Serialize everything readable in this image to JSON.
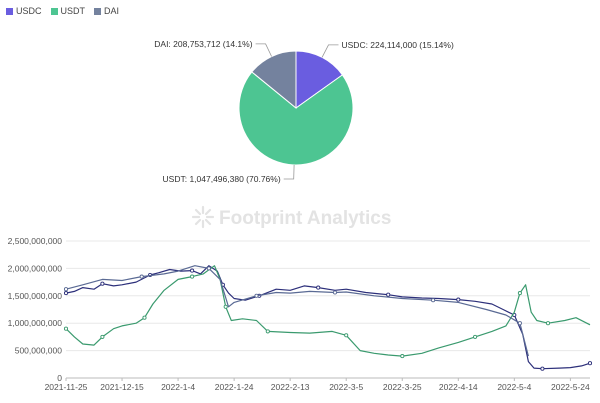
{
  "watermark": "Footprint Analytics",
  "colors": {
    "USDC": "#6a5de0",
    "USDT": "#4dc592",
    "DAI": "#74829e",
    "line_usdc": "#2c2f7a",
    "line_usdt": "#3a9a6e",
    "line_dai": "#5a6a94"
  },
  "chart_data": [
    {
      "type": "pie",
      "legend": [
        "USDC",
        "USDT",
        "DAI"
      ],
      "legend_placement": "top-left",
      "slices": [
        {
          "name": "USDC",
          "value": 224114000,
          "label": "USDC: 224,114,000 (15.14%)"
        },
        {
          "name": "USDT",
          "value": 1047496380,
          "label": "USDT: 1,047,496,380 (70.76%)"
        },
        {
          "name": "DAI",
          "value": 208753712,
          "label": "DAI: 208,753,712 (14.1%)"
        }
      ]
    },
    {
      "type": "line",
      "ylim": [
        0,
        2500000000
      ],
      "y_ticks": [
        "0",
        "500,000,000",
        "1,000,000,000",
        "1,500,000,000",
        "2,000,000,000",
        "2,500,000,000"
      ],
      "x_range": [
        "2021-11-25",
        "2022-05-31"
      ],
      "x_ticks": [
        "2021-11-25",
        "2021-12-15",
        "2022-1-4",
        "2022-1-24",
        "2022-2-13",
        "2022-3-5",
        "2022-3-25",
        "2022-4-14",
        "2022-5-4",
        "2022-5-24"
      ],
      "grid": "horizontal",
      "series": [
        {
          "name": "USDC",
          "points": [
            [
              "2021-11-25",
              1550000000
            ],
            [
              "2021-11-28",
              1580000000
            ],
            [
              "2021-12-01",
              1650000000
            ],
            [
              "2021-12-05",
              1620000000
            ],
            [
              "2021-12-08",
              1720000000
            ],
            [
              "2021-12-12",
              1680000000
            ],
            [
              "2021-12-15",
              1700000000
            ],
            [
              "2021-12-20",
              1750000000
            ],
            [
              "2021-12-25",
              1880000000
            ],
            [
              "2021-12-28",
              1920000000
            ],
            [
              "2022-01-01",
              1980000000
            ],
            [
              "2022-01-05",
              1950000000
            ],
            [
              "2022-01-09",
              1960000000
            ],
            [
              "2022-01-12",
              1900000000
            ],
            [
              "2022-01-15",
              2050000000
            ],
            [
              "2022-01-18",
              1950000000
            ],
            [
              "2022-01-20",
              1700000000
            ],
            [
              "2022-01-22",
              1550000000
            ],
            [
              "2022-01-24",
              1450000000
            ],
            [
              "2022-01-28",
              1420000000
            ],
            [
              "2022-02-02",
              1500000000
            ],
            [
              "2022-02-08",
              1620000000
            ],
            [
              "2022-02-13",
              1600000000
            ],
            [
              "2022-02-18",
              1680000000
            ],
            [
              "2022-02-23",
              1650000000
            ],
            [
              "2022-03-01",
              1600000000
            ],
            [
              "2022-03-05",
              1620000000
            ],
            [
              "2022-03-12",
              1560000000
            ],
            [
              "2022-03-20",
              1520000000
            ],
            [
              "2022-03-25",
              1480000000
            ],
            [
              "2022-04-01",
              1460000000
            ],
            [
              "2022-04-07",
              1450000000
            ],
            [
              "2022-04-14",
              1430000000
            ],
            [
              "2022-04-20",
              1400000000
            ],
            [
              "2022-04-26",
              1350000000
            ],
            [
              "2022-04-30",
              1250000000
            ],
            [
              "2022-05-04",
              1150000000
            ],
            [
              "2022-05-07",
              800000000
            ],
            [
              "2022-05-09",
              300000000
            ],
            [
              "2022-05-11",
              180000000
            ],
            [
              "2022-05-14",
              170000000
            ],
            [
              "2022-05-20",
              180000000
            ],
            [
              "2022-05-24",
              190000000
            ],
            [
              "2022-05-28",
              220000000
            ],
            [
              "2022-05-31",
              270000000
            ]
          ]
        },
        {
          "name": "USDT",
          "points": [
            [
              "2021-11-25",
              900000000
            ],
            [
              "2021-11-28",
              750000000
            ],
            [
              "2021-12-01",
              620000000
            ],
            [
              "2021-12-05",
              600000000
            ],
            [
              "2021-12-08",
              750000000
            ],
            [
              "2021-12-12",
              900000000
            ],
            [
              "2021-12-15",
              950000000
            ],
            [
              "2021-12-20",
              1000000000
            ],
            [
              "2021-12-23",
              1100000000
            ],
            [
              "2021-12-26",
              1350000000
            ],
            [
              "2021-12-30",
              1600000000
            ],
            [
              "2022-01-04",
              1800000000
            ],
            [
              "2022-01-09",
              1850000000
            ],
            [
              "2022-01-13",
              1900000000
            ],
            [
              "2022-01-17",
              2050000000
            ],
            [
              "2022-01-19",
              1800000000
            ],
            [
              "2022-01-21",
              1300000000
            ],
            [
              "2022-01-23",
              1050000000
            ],
            [
              "2022-01-27",
              1080000000
            ],
            [
              "2022-02-01",
              1050000000
            ],
            [
              "2022-02-05",
              850000000
            ],
            [
              "2022-02-13",
              830000000
            ],
            [
              "2022-02-20",
              820000000
            ],
            [
              "2022-02-28",
              850000000
            ],
            [
              "2022-03-05",
              780000000
            ],
            [
              "2022-03-10",
              500000000
            ],
            [
              "2022-03-15",
              450000000
            ],
            [
              "2022-03-20",
              420000000
            ],
            [
              "2022-03-25",
              400000000
            ],
            [
              "2022-04-01",
              450000000
            ],
            [
              "2022-04-07",
              550000000
            ],
            [
              "2022-04-14",
              650000000
            ],
            [
              "2022-04-20",
              750000000
            ],
            [
              "2022-04-26",
              850000000
            ],
            [
              "2022-05-01",
              950000000
            ],
            [
              "2022-05-04",
              1200000000
            ],
            [
              "2022-05-06",
              1550000000
            ],
            [
              "2022-05-08",
              1700000000
            ],
            [
              "2022-05-10",
              1200000000
            ],
            [
              "2022-05-12",
              1050000000
            ],
            [
              "2022-05-16",
              1000000000
            ],
            [
              "2022-05-22",
              1050000000
            ],
            [
              "2022-05-26",
              1100000000
            ],
            [
              "2022-05-31",
              970000000
            ]
          ]
        },
        {
          "name": "DAI",
          "points": [
            [
              "2021-11-25",
              1620000000
            ],
            [
              "2021-12-01",
              1700000000
            ],
            [
              "2021-12-08",
              1800000000
            ],
            [
              "2021-12-15",
              1780000000
            ],
            [
              "2021-12-22",
              1850000000
            ],
            [
              "2021-12-30",
              1900000000
            ],
            [
              "2022-01-04",
              1950000000
            ],
            [
              "2022-01-10",
              2050000000
            ],
            [
              "2022-01-15",
              2000000000
            ],
            [
              "2022-01-19",
              1800000000
            ],
            [
              "2022-01-22",
              1300000000
            ],
            [
              "2022-01-24",
              1380000000
            ],
            [
              "2022-02-01",
              1500000000
            ],
            [
              "2022-02-08",
              1560000000
            ],
            [
              "2022-02-13",
              1550000000
            ],
            [
              "2022-02-20",
              1580000000
            ],
            [
              "2022-03-01",
              1560000000
            ],
            [
              "2022-03-05",
              1570000000
            ],
            [
              "2022-03-15",
              1500000000
            ],
            [
              "2022-03-25",
              1450000000
            ],
            [
              "2022-04-05",
              1420000000
            ],
            [
              "2022-04-14",
              1380000000
            ],
            [
              "2022-04-24",
              1250000000
            ],
            [
              "2022-05-01",
              1150000000
            ],
            [
              "2022-05-06",
              1000000000
            ],
            [
              "2022-05-09",
              400000000
            ]
          ]
        }
      ]
    }
  ]
}
